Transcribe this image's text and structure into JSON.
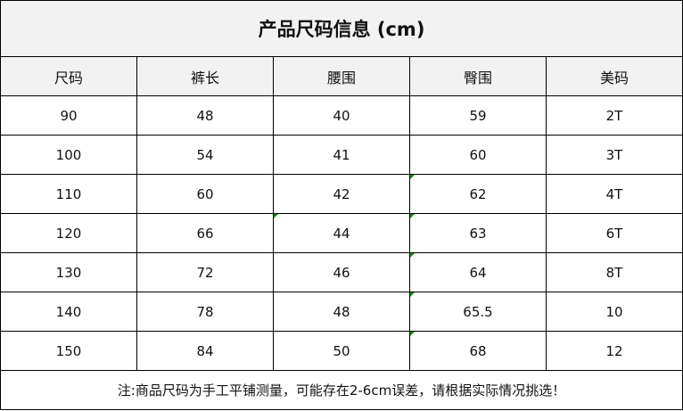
{
  "title": "产品尺码信息 (cm)",
  "headers": [
    "尺码",
    "裤长",
    "腰围",
    "臀围",
    "美码"
  ],
  "rows": [
    [
      "90",
      "48",
      "40",
      "59",
      "2T"
    ],
    [
      "100",
      "54",
      "41",
      "60",
      "3T"
    ],
    [
      "110",
      "60",
      "42",
      "62",
      "4T"
    ],
    [
      "120",
      "66",
      "44",
      "63",
      "6T"
    ],
    [
      "130",
      "72",
      "46",
      "64",
      "8T"
    ],
    [
      "140",
      "78",
      "48",
      "65.5",
      "10"
    ],
    [
      "150",
      "84",
      "50",
      "68",
      "12"
    ]
  ],
  "note": "注:商品尺码为手工平铺测量，可能存在2-6cm误差，请根据实际情况挑选！",
  "colors": {
    "header_bg": "#f2f2f2",
    "border": "#000000",
    "comment_flag": "#1a8a1a"
  }
}
